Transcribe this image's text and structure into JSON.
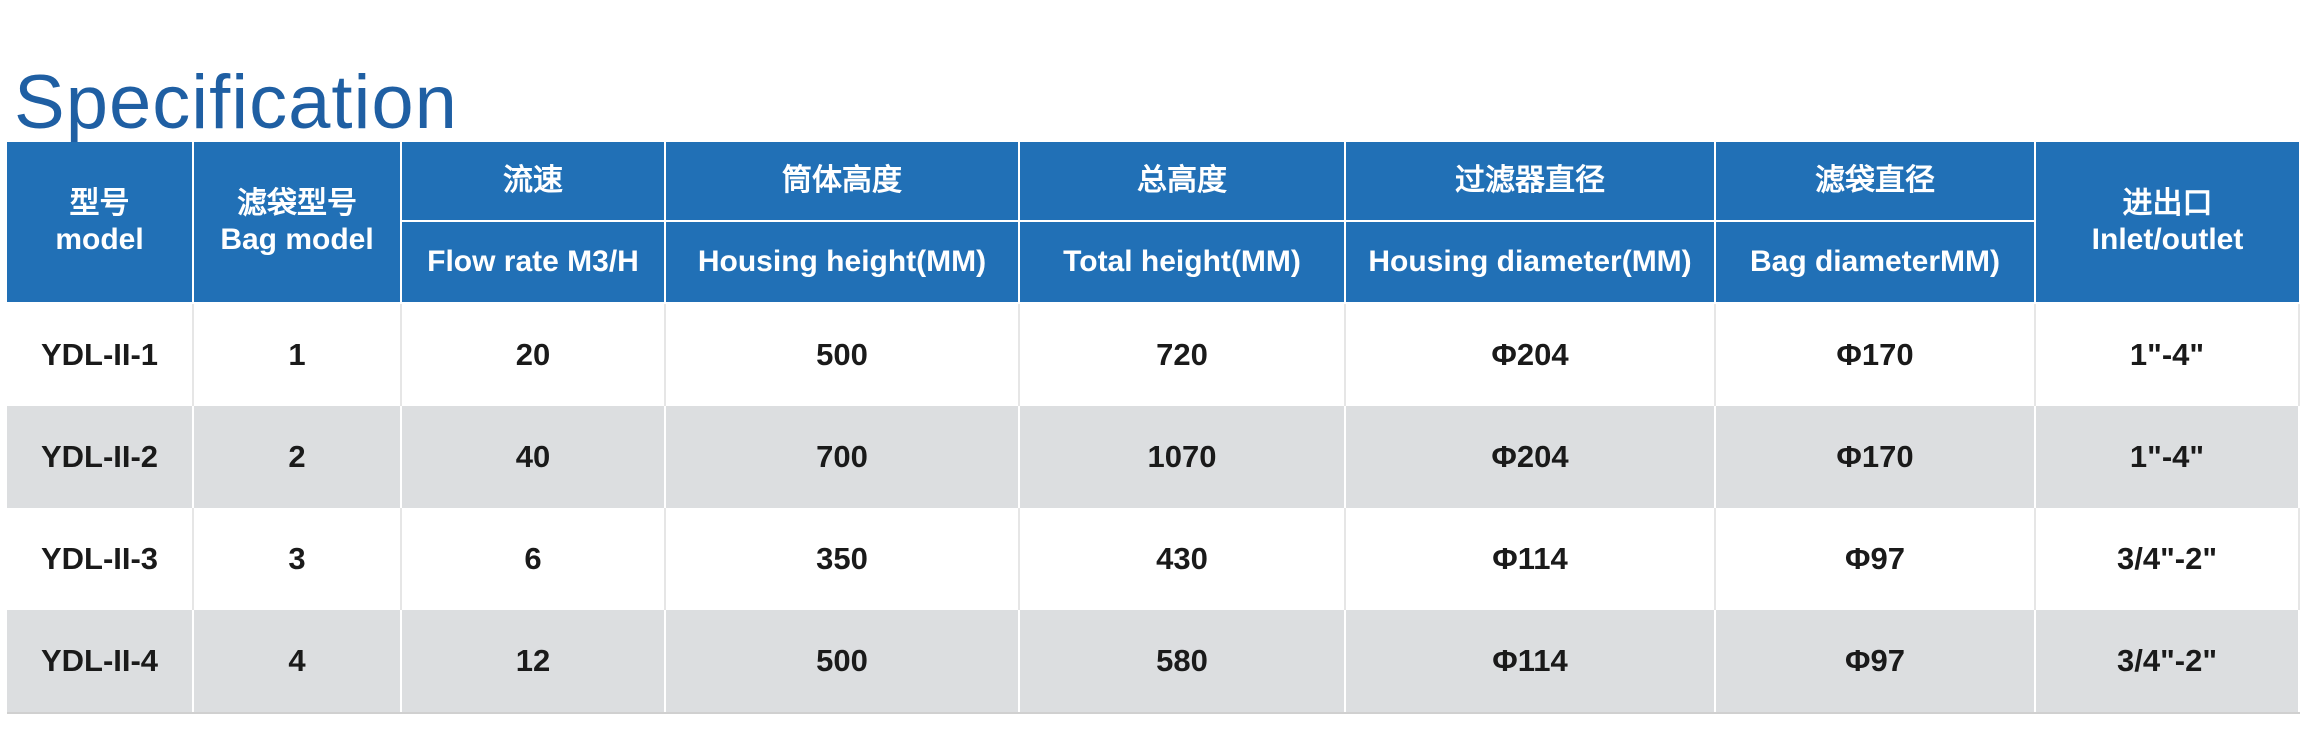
{
  "title": "Specification",
  "table": {
    "headers": {
      "model": {
        "cn": "型号",
        "en": "model"
      },
      "bag_model": {
        "cn": "滤袋型号",
        "en": "Bag model"
      },
      "flow_rate": {
        "cn": "流速",
        "en": "Flow rate  M3/H"
      },
      "housing_height": {
        "cn": "筒体高度",
        "en": "Housing height(MM)"
      },
      "total_height": {
        "cn": "总高度",
        "en": "Total height(MM)"
      },
      "housing_diameter": {
        "cn": "过滤器直径",
        "en": "Housing diameter(MM)"
      },
      "bag_diameter": {
        "cn": "滤袋直径",
        "en": "Bag diameterMM)"
      },
      "inlet_outlet": {
        "cn": "进出口",
        "en": "Inlet/outlet"
      }
    },
    "rows": [
      {
        "model": "YDL-II-1",
        "bag_model": "1",
        "flow_rate": "20",
        "housing_height": "500",
        "total_height": "720",
        "housing_diameter": "Φ204",
        "bag_diameter": "Φ170",
        "inlet_outlet": "1\"-4\""
      },
      {
        "model": "YDL-II-2",
        "bag_model": "2",
        "flow_rate": "40",
        "housing_height": "700",
        "total_height": "1070",
        "housing_diameter": "Φ204",
        "bag_diameter": "Φ170",
        "inlet_outlet": "1\"-4\""
      },
      {
        "model": "YDL-II-3",
        "bag_model": "3",
        "flow_rate": "6",
        "housing_height": "350",
        "total_height": "430",
        "housing_diameter": "Φ114",
        "bag_diameter": "Φ97",
        "inlet_outlet": "3/4\"-2\""
      },
      {
        "model": "YDL-II-4",
        "bag_model": "4",
        "flow_rate": "12",
        "housing_height": "500",
        "total_height": "580",
        "housing_diameter": "Φ114",
        "bag_diameter": "Φ97",
        "inlet_outlet": "3/4\"-2\""
      }
    ]
  }
}
